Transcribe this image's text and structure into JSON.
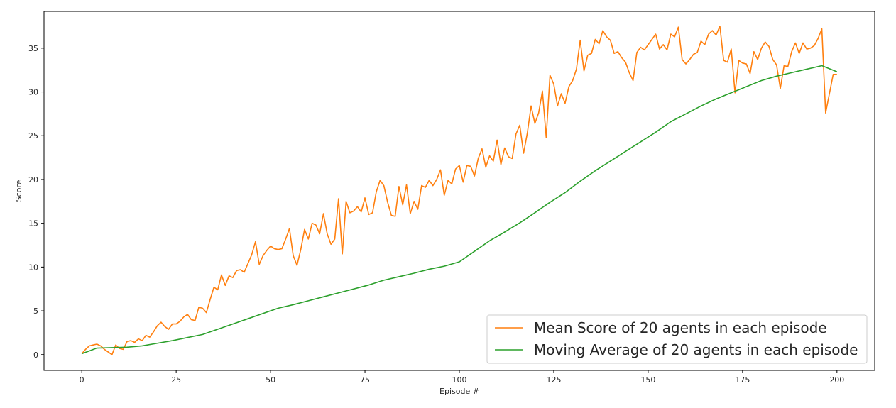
{
  "chart_data": {
    "type": "line",
    "title": "",
    "xlabel": "Episode #",
    "ylabel": "Score",
    "xlim": [
      -10,
      210
    ],
    "ylim": [
      -1.8,
      39.2
    ],
    "xticks": [
      0,
      25,
      50,
      75,
      100,
      125,
      150,
      175,
      200
    ],
    "yticks": [
      0,
      5,
      10,
      15,
      20,
      25,
      30,
      35
    ],
    "grid": false,
    "legend_position": "lower-right",
    "threshold": {
      "value": 30,
      "x_start": 0,
      "x_end": 200,
      "style": "dashed",
      "color": "#1f77b4"
    },
    "series": [
      {
        "name": "Mean Score of 20 agents in each episode",
        "color": "#ff7f0e",
        "x": [
          0,
          1,
          2,
          3,
          4,
          5,
          6,
          7,
          8,
          9,
          10,
          11,
          12,
          13,
          14,
          15,
          16,
          17,
          18,
          19,
          20,
          21,
          22,
          23,
          24,
          25,
          26,
          27,
          28,
          29,
          30,
          31,
          32,
          33,
          34,
          35,
          36,
          37,
          38,
          39,
          40,
          41,
          42,
          43,
          44,
          45,
          46,
          47,
          48,
          49,
          50,
          51,
          52,
          53,
          54,
          55,
          56,
          57,
          58,
          59,
          60,
          61,
          62,
          63,
          64,
          65,
          66,
          67,
          68,
          69,
          70,
          71,
          72,
          73,
          74,
          75,
          76,
          77,
          78,
          79,
          80,
          81,
          82,
          83,
          84,
          85,
          86,
          87,
          88,
          89,
          90,
          91,
          92,
          93,
          94,
          95,
          96,
          97,
          98,
          99,
          100,
          101,
          102,
          103,
          104,
          105,
          106,
          107,
          108,
          109,
          110,
          111,
          112,
          113,
          114,
          115,
          116,
          117,
          118,
          119,
          120,
          121,
          122,
          123,
          124,
          125,
          126,
          127,
          128,
          129,
          130,
          131,
          132,
          133,
          134,
          135,
          136,
          137,
          138,
          139,
          140,
          141,
          142,
          143,
          144,
          145,
          146,
          147,
          148,
          149,
          150,
          151,
          152,
          153,
          154,
          155,
          156,
          157,
          158,
          159,
          160,
          161,
          162,
          163,
          164,
          165,
          166,
          167,
          168,
          169,
          170,
          171,
          172,
          173,
          174,
          175,
          176,
          177,
          178,
          179,
          180,
          181,
          182,
          183,
          184,
          185,
          186,
          187,
          188,
          189,
          190,
          191,
          192,
          193,
          194,
          195,
          196,
          197,
          198,
          199,
          200
        ],
        "values": [
          0.1,
          0.6,
          1.0,
          1.1,
          1.2,
          1.0,
          0.6,
          0.3,
          0.0,
          1.1,
          0.7,
          0.6,
          1.5,
          1.6,
          1.4,
          1.8,
          1.6,
          2.2,
          2.0,
          2.6,
          3.3,
          3.7,
          3.2,
          2.9,
          3.5,
          3.5,
          3.8,
          4.3,
          4.6,
          4.0,
          3.9,
          5.4,
          5.3,
          4.8,
          6.3,
          7.7,
          7.4,
          9.1,
          7.9,
          9.0,
          8.8,
          9.6,
          9.7,
          9.4,
          10.4,
          11.4,
          12.9,
          10.3,
          11.3,
          11.9,
          12.4,
          12.1,
          12.0,
          12.1,
          13.2,
          14.4,
          11.3,
          10.2,
          12.0,
          14.3,
          13.2,
          15.0,
          14.8,
          13.8,
          16.1,
          13.8,
          12.6,
          13.2,
          17.8,
          11.5,
          17.5,
          16.2,
          16.4,
          16.9,
          16.3,
          17.9,
          16.0,
          16.2,
          18.6,
          19.9,
          19.3,
          17.4,
          15.9,
          15.8,
          19.2,
          17.1,
          19.4,
          16.1,
          17.5,
          16.6,
          19.3,
          19.1,
          19.9,
          19.3,
          20.0,
          21.1,
          18.2,
          19.9,
          19.5,
          21.2,
          21.6,
          19.7,
          21.6,
          21.5,
          20.4,
          22.4,
          23.5,
          21.4,
          22.7,
          22.1,
          24.5,
          21.7,
          23.6,
          22.6,
          22.4,
          25.2,
          26.2,
          23.0,
          25.3,
          28.4,
          26.4,
          27.6,
          30.1,
          24.8,
          31.9,
          30.9,
          28.4,
          29.8,
          28.7,
          30.6,
          31.3,
          32.6,
          35.9,
          32.4,
          34.2,
          34.4,
          36.0,
          35.5,
          37.0,
          36.3,
          35.9,
          34.4,
          34.6,
          33.9,
          33.4,
          32.2,
          31.3,
          34.5,
          35.1,
          34.8,
          35.4,
          36.0,
          36.6,
          34.9,
          35.4,
          34.8,
          36.6,
          36.3,
          37.4,
          33.7,
          33.2,
          33.7,
          34.3,
          34.5,
          35.8,
          35.4,
          36.6,
          37.0,
          36.5,
          37.5,
          33.6,
          33.4,
          34.9,
          29.9,
          33.6,
          33.3,
          33.2,
          32.1,
          34.6,
          33.7,
          35.0,
          35.7,
          35.2,
          33.7,
          33.1,
          30.4,
          33.0,
          32.9,
          34.6,
          35.6,
          34.4,
          35.6,
          34.9,
          35.0,
          35.3,
          36.1,
          37.2,
          27.6,
          29.8,
          32.0,
          32.0
        ]
      },
      {
        "name": "Moving Average of 20 agents in each episode",
        "color": "#2ca02c",
        "x": [
          0,
          4,
          8,
          12,
          16,
          20,
          24,
          28,
          32,
          36,
          40,
          44,
          48,
          52,
          56,
          60,
          64,
          68,
          72,
          76,
          80,
          84,
          88,
          92,
          96,
          100,
          104,
          108,
          112,
          116,
          120,
          124,
          128,
          132,
          136,
          140,
          144,
          148,
          152,
          156,
          160,
          164,
          168,
          172,
          176,
          180,
          184,
          188,
          192,
          196,
          200
        ],
        "values": [
          0.1,
          0.75,
          0.8,
          0.85,
          1.0,
          1.3,
          1.6,
          1.95,
          2.3,
          2.9,
          3.5,
          4.1,
          4.7,
          5.3,
          5.7,
          6.15,
          6.6,
          7.05,
          7.5,
          7.95,
          8.5,
          8.9,
          9.3,
          9.75,
          10.1,
          10.6,
          11.8,
          13.0,
          14.0,
          15.05,
          16.2,
          17.4,
          18.5,
          19.8,
          21.0,
          22.1,
          23.2,
          24.3,
          25.4,
          26.6,
          27.5,
          28.4,
          29.2,
          29.9,
          30.6,
          31.3,
          31.8,
          32.2,
          32.6,
          33.0,
          32.3
        ]
      }
    ]
  }
}
